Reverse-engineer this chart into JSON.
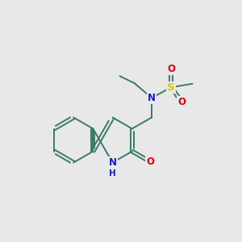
{
  "background_color": "#e8e8e8",
  "bond_color": "#3a7a6a",
  "atom_colors": {
    "N": "#1a1acc",
    "O": "#dd0000",
    "S": "#cccc00"
  },
  "lw": 1.4,
  "fs": 8.5,
  "figsize": [
    3.0,
    3.0
  ],
  "dpi": 100
}
